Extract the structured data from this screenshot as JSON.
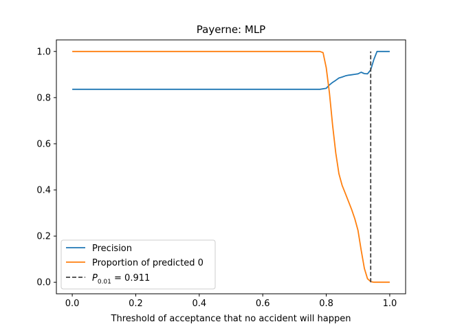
{
  "chart_data": {
    "type": "line",
    "title": "Payerne: MLP",
    "xlabel": "Threshold of acceptance that no accident will happen",
    "ylabel": "",
    "xlim": [
      -0.05,
      1.05
    ],
    "ylim": [
      -0.05,
      1.05
    ],
    "xticks": [
      "0.0",
      "0.2",
      "0.4",
      "0.6",
      "0.8",
      "1.0"
    ],
    "yticks": [
      "0.0",
      "0.2",
      "0.4",
      "0.6",
      "0.8",
      "1.0"
    ],
    "grid": false,
    "legend_position": "lower-left",
    "series": [
      {
        "name": "Precision",
        "color": "#1f77b4",
        "x": [
          0.0,
          0.2,
          0.4,
          0.6,
          0.78,
          0.8,
          0.81,
          0.82,
          0.83,
          0.84,
          0.85,
          0.86,
          0.87,
          0.88,
          0.89,
          0.9,
          0.91,
          0.92,
          0.93,
          0.94,
          0.95,
          0.96,
          0.97,
          0.98,
          0.99,
          1.0
        ],
        "values": [
          0.836,
          0.836,
          0.836,
          0.836,
          0.836,
          0.84,
          0.855,
          0.866,
          0.875,
          0.885,
          0.889,
          0.894,
          0.897,
          0.899,
          0.901,
          0.903,
          0.91,
          0.904,
          0.903,
          0.92,
          0.965,
          1.0,
          1.0,
          1.0,
          1.0,
          1.0
        ]
      },
      {
        "name": "Proportion of predicted 0",
        "color": "#ff7f0e",
        "x": [
          0.0,
          0.2,
          0.4,
          0.6,
          0.78,
          0.79,
          0.8,
          0.81,
          0.82,
          0.83,
          0.84,
          0.85,
          0.86,
          0.87,
          0.88,
          0.89,
          0.9,
          0.91,
          0.92,
          0.93,
          0.94,
          0.95,
          0.96,
          0.97,
          0.98,
          0.99,
          1.0
        ],
        "values": [
          1.0,
          1.0,
          1.0,
          1.0,
          1.0,
          0.995,
          0.93,
          0.82,
          0.68,
          0.56,
          0.47,
          0.42,
          0.385,
          0.35,
          0.315,
          0.275,
          0.225,
          0.14,
          0.06,
          0.015,
          0.003,
          0.0,
          0.0,
          0.0,
          0.0,
          0.0,
          0.0
        ]
      }
    ],
    "vline": {
      "x": 0.94,
      "color": "#404040",
      "style": "dashed",
      "legend_prefix": "P",
      "legend_subscript": "0.01",
      "legend_suffix": " = 0.911"
    }
  }
}
